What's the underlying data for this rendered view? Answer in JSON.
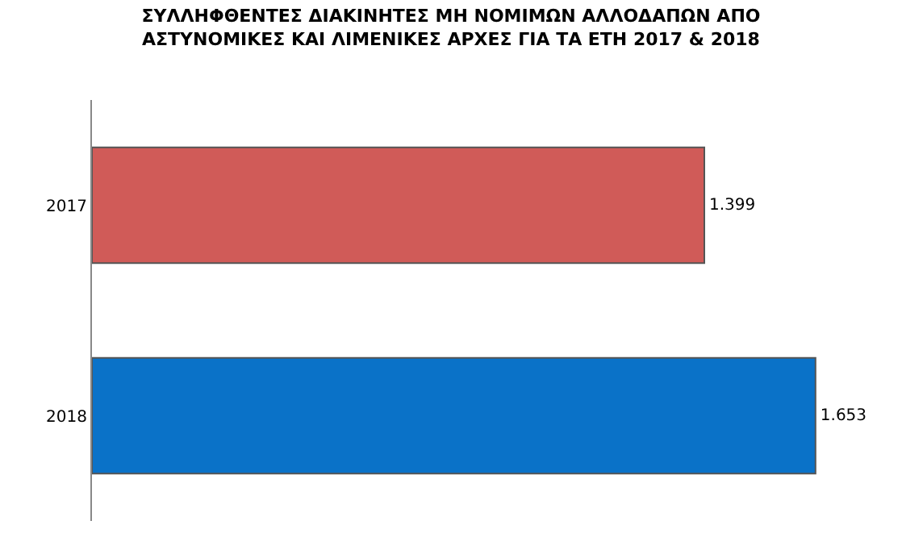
{
  "chart_data": {
    "type": "bar",
    "orientation": "horizontal",
    "title": "ΣΥΛΛΗΦΘΕΝΤΕΣ ΔΙΑΚΙΝΗΤΕΣ ΜΗ ΝΟΜΙΜΩΝ ΑΛΛΟΔΑΠΩΝ ΑΠΟ ΑΣΤΥΝΟΜΙΚΕΣ ΚΑΙ ΛΙΜΕΝΙΚΕΣ ΑΡΧΕΣ ΓΙΑ ΤΑ ΕΤΗ 2017 & 2018",
    "categories": [
      "2017",
      "2018"
    ],
    "values": [
      1399,
      1653
    ],
    "value_labels": [
      "1.399",
      "1.653"
    ],
    "colors": [
      "#d05b58",
      "#0a72c8"
    ],
    "tick_labels": "y",
    "legend": false
  }
}
